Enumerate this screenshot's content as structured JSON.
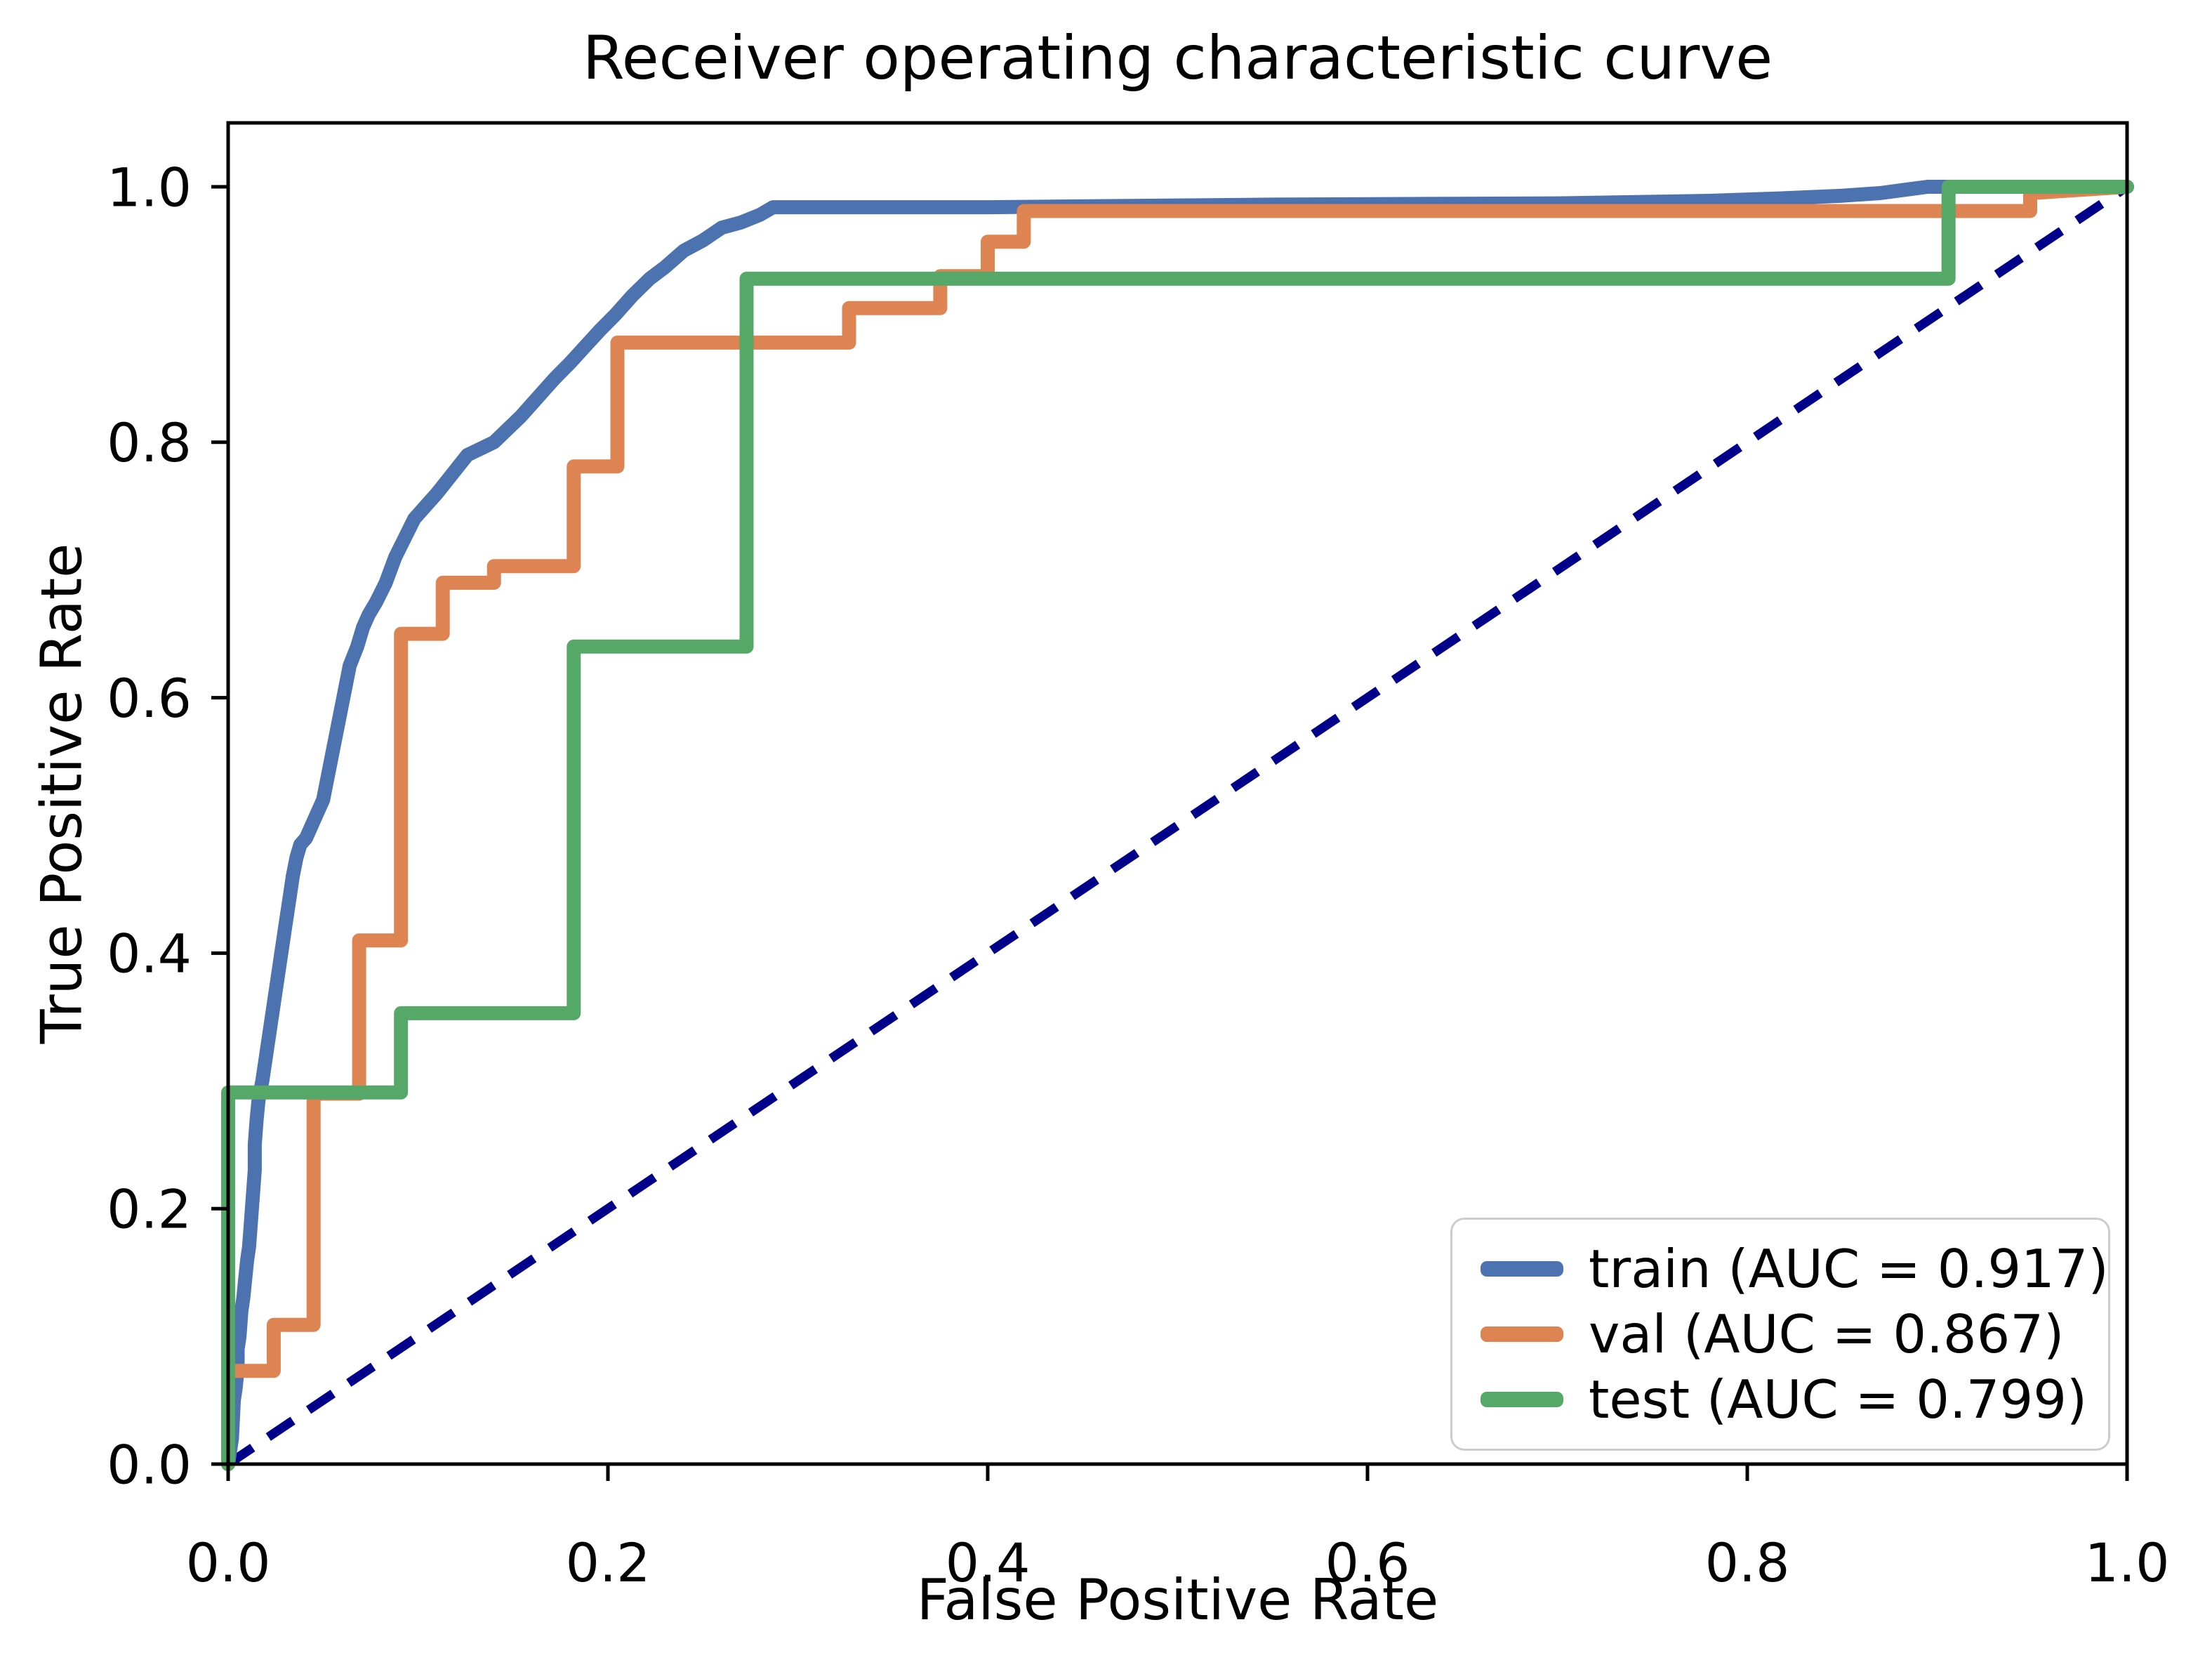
{
  "title": "Receiver operating characteristic curve",
  "axes": {
    "xlabel": "False Positive Rate",
    "ylabel": "True Positive Rate"
  },
  "colors": {
    "train": "#4C72B0",
    "val": "#DD8452",
    "test": "#55A868",
    "reference_diagonal": "#00008B",
    "spine": "#000000",
    "legend_border": "#cccccc"
  },
  "legend": {
    "position": "lower right",
    "entries": [
      {
        "label": "train (AUC = 0.917)",
        "color": "#4C72B0"
      },
      {
        "label": "val (AUC = 0.867)",
        "color": "#DD8452"
      },
      {
        "label": "test (AUC = 0.799)",
        "color": "#55A868"
      }
    ]
  },
  "chart_data": {
    "type": "line",
    "title": "Receiver operating characteristic curve",
    "xlabel": "False Positive Rate",
    "ylabel": "True Positive Rate",
    "xlim": [
      0.0,
      1.0
    ],
    "ylim": [
      0.0,
      1.05
    ],
    "x_ticks": [
      0.0,
      0.2,
      0.4,
      0.6,
      0.8,
      1.0
    ],
    "y_ticks": [
      0.0,
      0.2,
      0.4,
      0.6,
      0.8,
      1.0
    ],
    "grid": false,
    "legend_position": "lower right",
    "reference_line": {
      "name": "chance diagonal",
      "style": "dashed",
      "color": "#00008B",
      "points": [
        [
          0,
          0
        ],
        [
          1,
          1
        ]
      ]
    },
    "series": [
      {
        "name": "train (AUC = 0.917)",
        "auc": 0.917,
        "color": "#4C72B0",
        "points": [
          [
            0,
            0
          ],
          [
            0.002,
            0.02
          ],
          [
            0.003,
            0.05
          ],
          [
            0.004,
            0.06
          ],
          [
            0.005,
            0.075
          ],
          [
            0.005,
            0.09
          ],
          [
            0.006,
            0.1
          ],
          [
            0.007,
            0.12
          ],
          [
            0.008,
            0.13
          ],
          [
            0.009,
            0.145
          ],
          [
            0.01,
            0.16
          ],
          [
            0.011,
            0.17
          ],
          [
            0.012,
            0.19
          ],
          [
            0.013,
            0.21
          ],
          [
            0.014,
            0.23
          ],
          [
            0.014,
            0.25
          ],
          [
            0.015,
            0.27
          ],
          [
            0.016,
            0.285
          ],
          [
            0.018,
            0.3
          ],
          [
            0.02,
            0.32
          ],
          [
            0.022,
            0.34
          ],
          [
            0.024,
            0.36
          ],
          [
            0.026,
            0.38
          ],
          [
            0.028,
            0.4
          ],
          [
            0.03,
            0.42
          ],
          [
            0.032,
            0.44
          ],
          [
            0.034,
            0.46
          ],
          [
            0.036,
            0.475
          ],
          [
            0.038,
            0.485
          ],
          [
            0.041,
            0.49
          ],
          [
            0.044,
            0.5
          ],
          [
            0.047,
            0.51
          ],
          [
            0.05,
            0.52
          ],
          [
            0.052,
            0.535
          ],
          [
            0.054,
            0.55
          ],
          [
            0.056,
            0.565
          ],
          [
            0.058,
            0.58
          ],
          [
            0.06,
            0.595
          ],
          [
            0.062,
            0.61
          ],
          [
            0.064,
            0.625
          ],
          [
            0.068,
            0.64
          ],
          [
            0.071,
            0.655
          ],
          [
            0.074,
            0.665
          ],
          [
            0.078,
            0.675
          ],
          [
            0.083,
            0.69
          ],
          [
            0.088,
            0.71
          ],
          [
            0.093,
            0.725
          ],
          [
            0.098,
            0.74
          ],
          [
            0.104,
            0.75
          ],
          [
            0.11,
            0.76
          ],
          [
            0.118,
            0.775
          ],
          [
            0.126,
            0.79
          ],
          [
            0.133,
            0.795
          ],
          [
            0.14,
            0.8
          ],
          [
            0.147,
            0.81
          ],
          [
            0.154,
            0.82
          ],
          [
            0.16,
            0.83
          ],
          [
            0.166,
            0.84
          ],
          [
            0.172,
            0.85
          ],
          [
            0.18,
            0.862
          ],
          [
            0.188,
            0.875
          ],
          [
            0.196,
            0.888
          ],
          [
            0.204,
            0.9
          ],
          [
            0.213,
            0.915
          ],
          [
            0.222,
            0.928
          ],
          [
            0.23,
            0.937
          ],
          [
            0.24,
            0.95
          ],
          [
            0.25,
            0.958
          ],
          [
            0.26,
            0.968
          ],
          [
            0.27,
            0.972
          ],
          [
            0.28,
            0.978
          ],
          [
            0.287,
            0.984
          ],
          [
            0.4,
            0.984
          ],
          [
            0.55,
            0.986
          ],
          [
            0.7,
            0.987
          ],
          [
            0.78,
            0.989
          ],
          [
            0.82,
            0.991
          ],
          [
            0.85,
            0.993
          ],
          [
            0.87,
            0.995
          ],
          [
            0.885,
            0.998
          ],
          [
            0.895,
            1.0
          ],
          [
            1.0,
            1.0
          ]
        ]
      },
      {
        "name": "val (AUC = 0.867)",
        "auc": 0.867,
        "color": "#DD8452",
        "points": [
          [
            0,
            0
          ],
          [
            0,
            0.073
          ],
          [
            0.024,
            0.073
          ],
          [
            0.024,
            0.109
          ],
          [
            0.045,
            0.109
          ],
          [
            0.045,
            0.29
          ],
          [
            0.069,
            0.29
          ],
          [
            0.069,
            0.41
          ],
          [
            0.091,
            0.41
          ],
          [
            0.091,
            0.65
          ],
          [
            0.113,
            0.65
          ],
          [
            0.113,
            0.69
          ],
          [
            0.14,
            0.69
          ],
          [
            0.14,
            0.703
          ],
          [
            0.182,
            0.703
          ],
          [
            0.182,
            0.781
          ],
          [
            0.205,
            0.781
          ],
          [
            0.205,
            0.878
          ],
          [
            0.327,
            0.878
          ],
          [
            0.327,
            0.905
          ],
          [
            0.375,
            0.905
          ],
          [
            0.375,
            0.93
          ],
          [
            0.4,
            0.93
          ],
          [
            0.4,
            0.957
          ],
          [
            0.419,
            0.957
          ],
          [
            0.419,
            0.981
          ],
          [
            0.949,
            0.981
          ],
          [
            0.949,
            0.995
          ],
          [
            1,
            1
          ]
        ]
      },
      {
        "name": "test (AUC = 0.799)",
        "auc": 0.799,
        "color": "#55A868",
        "points": [
          [
            0,
            0
          ],
          [
            0,
            0.291
          ],
          [
            0.091,
            0.291
          ],
          [
            0.091,
            0.353
          ],
          [
            0.182,
            0.353
          ],
          [
            0.182,
            0.64
          ],
          [
            0.273,
            0.64
          ],
          [
            0.273,
            0.928
          ],
          [
            0.906,
            0.928
          ],
          [
            0.906,
            1.0
          ],
          [
            1,
            1
          ]
        ]
      }
    ]
  }
}
